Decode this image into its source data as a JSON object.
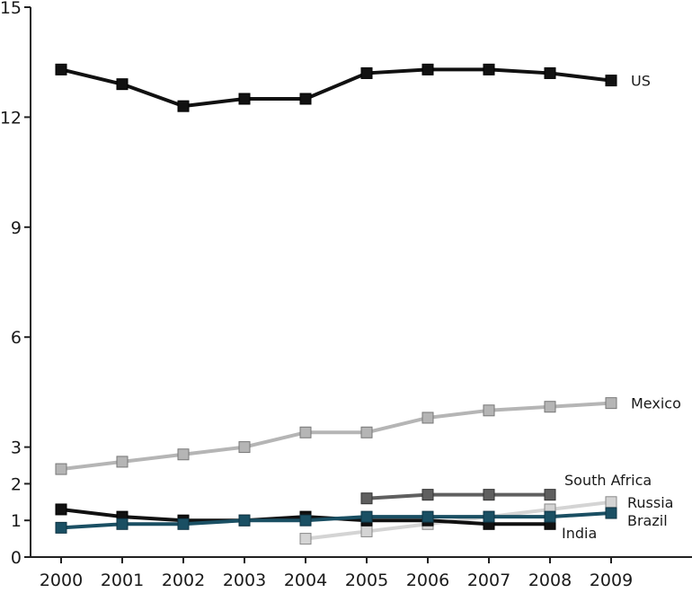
{
  "chart_data": {
    "type": "line",
    "x": [
      "2000",
      "2001",
      "2002",
      "2003",
      "2004",
      "2005",
      "2006",
      "2007",
      "2008",
      "2009"
    ],
    "ylim": [
      0,
      15
    ],
    "yticks": [
      0,
      1,
      2,
      3,
      6,
      9,
      12,
      15
    ],
    "grid": false,
    "series": [
      {
        "name": "US",
        "color": "#111111",
        "edge": "#000000",
        "values": [
          13.3,
          12.9,
          12.3,
          12.5,
          12.5,
          13.2,
          13.3,
          13.3,
          13.2,
          13.0
        ]
      },
      {
        "name": "Mexico",
        "color": "#b5b5b5",
        "edge": "#777777",
        "values": [
          2.4,
          2.6,
          2.8,
          3.0,
          3.4,
          3.4,
          3.8,
          4.0,
          4.1,
          4.2
        ]
      },
      {
        "name": "South Africa",
        "color": "#5f5f5f",
        "edge": "#333333",
        "values": [
          null,
          null,
          null,
          null,
          null,
          1.6,
          1.7,
          1.7,
          1.7,
          null
        ]
      },
      {
        "name": "Russia",
        "color": "#d4d4d4",
        "edge": "#888888",
        "values": [
          null,
          null,
          null,
          null,
          0.5,
          0.7,
          0.9,
          1.1,
          1.3,
          1.5
        ]
      },
      {
        "name": "India",
        "color": "#111111",
        "edge": "#000000",
        "values": [
          1.3,
          1.1,
          1.0,
          1.0,
          1.1,
          1.0,
          1.0,
          0.9,
          0.9,
          null
        ]
      },
      {
        "name": "Brazil",
        "color": "#1a4f63",
        "edge": "#0f3444",
        "values": [
          0.8,
          0.9,
          0.9,
          1.0,
          1.0,
          1.1,
          1.1,
          1.1,
          1.1,
          1.2
        ]
      }
    ]
  }
}
